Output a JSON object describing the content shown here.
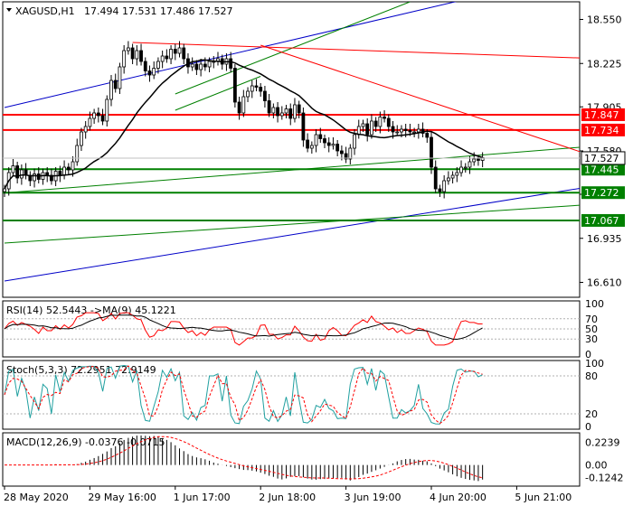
{
  "header": {
    "symbol_tf": "XAGUSD,H1",
    "ohlc": "17.494 17.531 17.486 17.527"
  },
  "colors": {
    "candle": "#000000",
    "ma": "#000000",
    "support": "#008000",
    "resistance": "#ff0000",
    "channel_blue": "#0000c8",
    "trend_green": "#008000",
    "trend_red": "#ff0000",
    "rsi": "#ff0000",
    "stoch_main": "#20a0a0",
    "stoch_signal": "#ff0000",
    "macd_hist": "#000000",
    "macd_signal": "#ff0000",
    "price_tag_bg": "#ff0000",
    "support_tag_bg": "#008000"
  },
  "chart_data": {
    "type": "candlestick",
    "symbol": "XAGUSD",
    "timeframe": "H1",
    "y_range": [
      16.5,
      18.68
    ],
    "price_axis_ticks": [
      "18.550",
      "18.225",
      "17.905",
      "17.580",
      "17.260",
      "16.935",
      "16.610"
    ],
    "time_axis_ticks": [
      "28 May 2020",
      "29 May 16:00",
      "1 Jun 17:00",
      "2 Jun 18:00",
      "3 Jun 19:00",
      "4 Jun 20:00",
      "5 Jun 21:00"
    ],
    "time_tick_index": [
      0,
      20,
      40,
      60,
      80,
      100,
      120
    ],
    "current_price": "17.527",
    "levels": [
      {
        "value": 17.847,
        "label": "17.847",
        "kind": "resistance"
      },
      {
        "value": 17.734,
        "label": "17.734",
        "kind": "resistance"
      },
      {
        "value": 17.445,
        "label": "17.445",
        "kind": "support"
      },
      {
        "value": 17.272,
        "label": "17.272",
        "kind": "support"
      },
      {
        "value": 17.067,
        "label": "17.067",
        "kind": "support"
      }
    ],
    "closes": [
      17.3,
      17.42,
      17.47,
      17.38,
      17.44,
      17.4,
      17.36,
      17.41,
      17.37,
      17.42,
      17.4,
      17.36,
      17.43,
      17.4,
      17.46,
      17.44,
      17.5,
      17.62,
      17.72,
      17.76,
      17.82,
      17.86,
      17.84,
      17.8,
      17.96,
      18.1,
      18.04,
      18.2,
      18.32,
      18.34,
      18.26,
      18.32,
      18.24,
      18.17,
      18.14,
      18.19,
      18.24,
      18.28,
      18.26,
      18.33,
      18.3,
      18.34,
      18.26,
      18.2,
      18.22,
      18.18,
      18.22,
      18.2,
      18.24,
      18.24,
      18.26,
      18.22,
      18.26,
      18.19,
      17.94,
      17.86,
      17.98,
      18.02,
      18.06,
      18.05,
      18.02,
      17.95,
      17.86,
      17.9,
      17.84,
      17.86,
      17.89,
      17.82,
      17.92,
      17.86,
      17.66,
      17.6,
      17.62,
      17.7,
      17.67,
      17.64,
      17.62,
      17.63,
      17.58,
      17.56,
      17.52,
      17.6,
      17.7,
      17.76,
      17.78,
      17.7,
      17.8,
      17.76,
      17.83,
      17.82,
      17.76,
      17.72,
      17.72,
      17.74,
      17.73,
      17.72,
      17.72,
      17.74,
      17.71,
      17.68,
      17.46,
      17.3,
      17.28,
      17.36,
      17.38,
      17.4,
      17.42,
      17.46,
      17.46,
      17.5,
      17.52,
      17.51,
      17.53
    ],
    "ma_period": 20,
    "trendlines": [
      {
        "name": "blue-channel-upper",
        "color": "channel_blue",
        "from": [
          0,
          17.9
        ],
        "to": [
          115,
          18.75
        ]
      },
      {
        "name": "blue-channel-lower",
        "color": "channel_blue",
        "from": [
          0,
          16.62
        ],
        "to": [
          140,
          17.33
        ]
      },
      {
        "name": "green-channel-upper",
        "color": "trend_green",
        "from": [
          40,
          18.0
        ],
        "to": [
          95,
          18.68
        ]
      },
      {
        "name": "green-channel-lower",
        "color": "trend_green",
        "from": [
          40,
          17.88
        ],
        "to": [
          60,
          18.13
        ]
      },
      {
        "name": "green-trend-long",
        "color": "trend_green",
        "from": [
          0,
          16.9
        ],
        "to": [
          140,
          17.19
        ]
      },
      {
        "name": "green-trend-mid",
        "color": "trend_green",
        "from": [
          0,
          17.27
        ],
        "to": [
          140,
          17.62
        ]
      },
      {
        "name": "red-trend-upper",
        "color": "trend_red",
        "from": [
          30,
          18.38
        ],
        "to": [
          140,
          18.26
        ]
      },
      {
        "name": "red-trend-lower",
        "color": "trend_red",
        "from": [
          60,
          18.36
        ],
        "to": [
          140,
          17.52
        ]
      }
    ],
    "rsi": {
      "label": "RSI(14) 52.5443 ->MA(9) 45.1221",
      "ticks": [
        "100",
        "70",
        "50",
        "30",
        "0"
      ],
      "tick_values": [
        100,
        70,
        50,
        30,
        0
      ],
      "current": 52.5443,
      "ma": 45.1221
    },
    "stochastic": {
      "label": "Stoch(5,3,3) 72.2951 72.9149",
      "ticks": [
        "100",
        "80",
        "20",
        "0"
      ],
      "tick_values": [
        100,
        80,
        20,
        0
      ],
      "main": 72.2951,
      "signal": 72.9149
    },
    "macd": {
      "label": "MACD(12,26,9) -0.0376 -0.0715",
      "ticks": [
        "0.2239",
        "0.00",
        "-0.1242"
      ],
      "tick_values": [
        0.2239,
        0.0,
        -0.1242
      ],
      "y_range": [
        -0.19,
        0.29
      ],
      "main": -0.0376,
      "signal": -0.0715
    }
  }
}
